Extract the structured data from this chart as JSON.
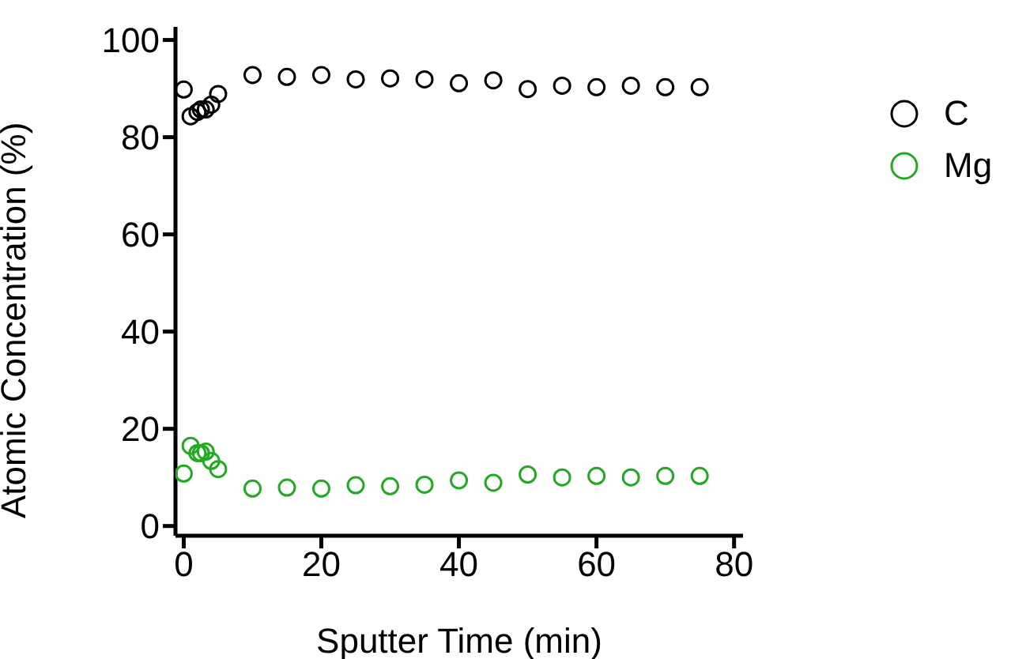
{
  "chart_data": {
    "type": "scatter",
    "xlabel": "Sputter Time (min)",
    "ylabel": "Atomic Concentration (%)",
    "x": [
      0,
      1,
      2,
      2.5,
      3.2,
      4,
      5,
      10,
      15,
      20,
      25,
      30,
      35,
      40,
      45,
      50,
      55,
      60,
      65,
      70,
      75
    ],
    "series": [
      {
        "name": "C",
        "color": "#000000",
        "values": [
          89.8,
          84.3,
          85.2,
          85.7,
          85.7,
          86.7,
          88.9,
          92.8,
          92.4,
          92.8,
          91.9,
          92.1,
          91.9,
          91.1,
          91.7,
          89.9,
          90.6,
          90.3,
          90.6,
          90.3,
          90.3
        ]
      },
      {
        "name": "Mg",
        "color": "#22aa22",
        "values": [
          10.8,
          16.5,
          15.0,
          15.0,
          15.3,
          13.4,
          11.7,
          7.7,
          7.9,
          7.7,
          8.4,
          8.2,
          8.5,
          9.4,
          8.9,
          10.6,
          10.0,
          10.3,
          10.0,
          10.3,
          10.3
        ]
      }
    ],
    "xlim": [
      -1.2,
      81.3
    ],
    "xticks": [
      0,
      20,
      40,
      60,
      80
    ],
    "ylim": [
      -2,
      102.7
    ],
    "yticks": [
      0,
      20,
      40,
      60,
      80,
      100
    ],
    "grid": false,
    "legend": "top right",
    "marker": "circle"
  }
}
